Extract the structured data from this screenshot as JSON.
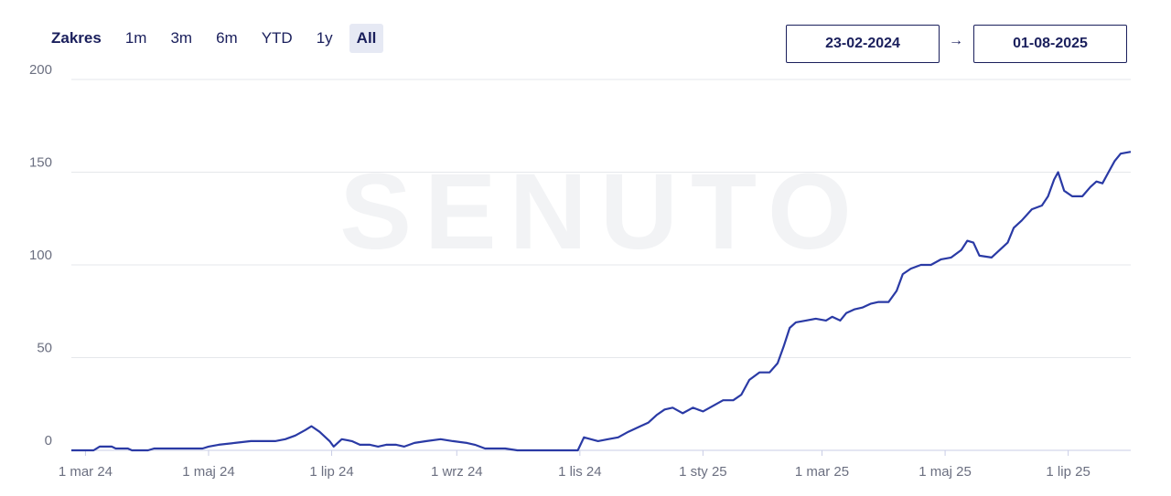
{
  "range": {
    "label": "Zakres",
    "buttons": [
      "1m",
      "3m",
      "6m",
      "YTD",
      "1y",
      "All"
    ],
    "active": "All"
  },
  "dates": {
    "from": "23-02-2024",
    "arrow": "→",
    "to": "01-08-2025"
  },
  "watermark": "SENUTO",
  "colors": {
    "line": "#2a3aa5",
    "grid": "#e5e7eb",
    "axis": "#c9cde6",
    "text": "#1a1f5c"
  },
  "chart_data": {
    "type": "line",
    "xlabel": "",
    "ylabel": "",
    "ylim": [
      0,
      200
    ],
    "yticks": [
      0,
      50,
      100,
      150,
      200
    ],
    "xlim": [
      "2024-02-23",
      "2025-08-01"
    ],
    "xticks": [
      {
        "date": "2024-03-01",
        "label": "1 mar 24"
      },
      {
        "date": "2024-05-01",
        "label": "1 maj 24"
      },
      {
        "date": "2024-07-01",
        "label": "1 lip 24"
      },
      {
        "date": "2024-09-01",
        "label": "1 wrz 24"
      },
      {
        "date": "2024-11-01",
        "label": "1 lis 24"
      },
      {
        "date": "2025-01-01",
        "label": "1 sty 25"
      },
      {
        "date": "2025-03-01",
        "label": "1 mar 25"
      },
      {
        "date": "2025-05-01",
        "label": "1 maj 25"
      },
      {
        "date": "2025-07-01",
        "label": "1 lip 25"
      }
    ],
    "grid": true,
    "series": [
      {
        "points": [
          [
            "2024-02-23",
            0
          ],
          [
            "2024-03-05",
            0
          ],
          [
            "2024-03-08",
            2
          ],
          [
            "2024-03-14",
            2
          ],
          [
            "2024-03-16",
            1
          ],
          [
            "2024-03-22",
            1
          ],
          [
            "2024-03-24",
            0
          ],
          [
            "2024-04-01",
            0
          ],
          [
            "2024-04-04",
            1
          ],
          [
            "2024-04-28",
            1
          ],
          [
            "2024-05-01",
            2
          ],
          [
            "2024-05-06",
            3
          ],
          [
            "2024-05-14",
            4
          ],
          [
            "2024-05-22",
            5
          ],
          [
            "2024-06-03",
            5
          ],
          [
            "2024-06-08",
            6
          ],
          [
            "2024-06-13",
            8
          ],
          [
            "2024-06-18",
            11
          ],
          [
            "2024-06-21",
            13
          ],
          [
            "2024-06-25",
            10
          ],
          [
            "2024-06-30",
            5
          ],
          [
            "2024-07-02",
            2
          ],
          [
            "2024-07-06",
            6
          ],
          [
            "2024-07-11",
            5
          ],
          [
            "2024-07-15",
            3
          ],
          [
            "2024-07-20",
            3
          ],
          [
            "2024-07-24",
            2
          ],
          [
            "2024-07-28",
            3
          ],
          [
            "2024-08-02",
            3
          ],
          [
            "2024-08-06",
            2
          ],
          [
            "2024-08-11",
            4
          ],
          [
            "2024-08-17",
            5
          ],
          [
            "2024-08-24",
            6
          ],
          [
            "2024-08-30",
            5
          ],
          [
            "2024-09-06",
            4
          ],
          [
            "2024-09-10",
            3
          ],
          [
            "2024-09-15",
            1
          ],
          [
            "2024-09-25",
            1
          ],
          [
            "2024-10-01",
            0
          ],
          [
            "2024-10-31",
            0
          ],
          [
            "2024-11-03",
            7
          ],
          [
            "2024-11-10",
            5
          ],
          [
            "2024-11-15",
            6
          ],
          [
            "2024-11-20",
            7
          ],
          [
            "2024-11-25",
            10
          ],
          [
            "2024-12-01",
            13
          ],
          [
            "2024-12-05",
            15
          ],
          [
            "2024-12-09",
            19
          ],
          [
            "2024-12-13",
            22
          ],
          [
            "2024-12-17",
            23
          ],
          [
            "2024-12-22",
            20
          ],
          [
            "2024-12-27",
            23
          ],
          [
            "2025-01-01",
            21
          ],
          [
            "2025-01-06",
            24
          ],
          [
            "2025-01-11",
            27
          ],
          [
            "2025-01-16",
            27
          ],
          [
            "2025-01-20",
            30
          ],
          [
            "2025-01-24",
            38
          ],
          [
            "2025-01-29",
            42
          ],
          [
            "2025-02-03",
            42
          ],
          [
            "2025-02-07",
            47
          ],
          [
            "2025-02-10",
            56
          ],
          [
            "2025-02-13",
            66
          ],
          [
            "2025-02-16",
            69
          ],
          [
            "2025-02-21",
            70
          ],
          [
            "2025-02-26",
            71
          ],
          [
            "2025-03-03",
            70
          ],
          [
            "2025-03-06",
            72
          ],
          [
            "2025-03-10",
            70
          ],
          [
            "2025-03-13",
            74
          ],
          [
            "2025-03-17",
            76
          ],
          [
            "2025-03-21",
            77
          ],
          [
            "2025-03-25",
            79
          ],
          [
            "2025-03-29",
            80
          ],
          [
            "2025-04-03",
            80
          ],
          [
            "2025-04-07",
            86
          ],
          [
            "2025-04-10",
            95
          ],
          [
            "2025-04-14",
            98
          ],
          [
            "2025-04-19",
            100
          ],
          [
            "2025-04-24",
            100
          ],
          [
            "2025-04-29",
            103
          ],
          [
            "2025-05-04",
            104
          ],
          [
            "2025-05-09",
            108
          ],
          [
            "2025-05-12",
            113
          ],
          [
            "2025-05-15",
            112
          ],
          [
            "2025-05-18",
            105
          ],
          [
            "2025-05-24",
            104
          ],
          [
            "2025-05-28",
            108
          ],
          [
            "2025-06-01",
            112
          ],
          [
            "2025-06-04",
            120
          ],
          [
            "2025-06-08",
            124
          ],
          [
            "2025-06-13",
            130
          ],
          [
            "2025-06-18",
            132
          ],
          [
            "2025-06-21",
            137
          ],
          [
            "2025-06-24",
            146
          ],
          [
            "2025-06-26",
            150
          ],
          [
            "2025-06-29",
            140
          ],
          [
            "2025-07-03",
            137
          ],
          [
            "2025-07-08",
            137
          ],
          [
            "2025-07-12",
            142
          ],
          [
            "2025-07-15",
            145
          ],
          [
            "2025-07-18",
            144
          ],
          [
            "2025-07-21",
            150
          ],
          [
            "2025-07-24",
            156
          ],
          [
            "2025-07-27",
            160
          ],
          [
            "2025-08-01",
            161
          ]
        ]
      }
    ]
  }
}
